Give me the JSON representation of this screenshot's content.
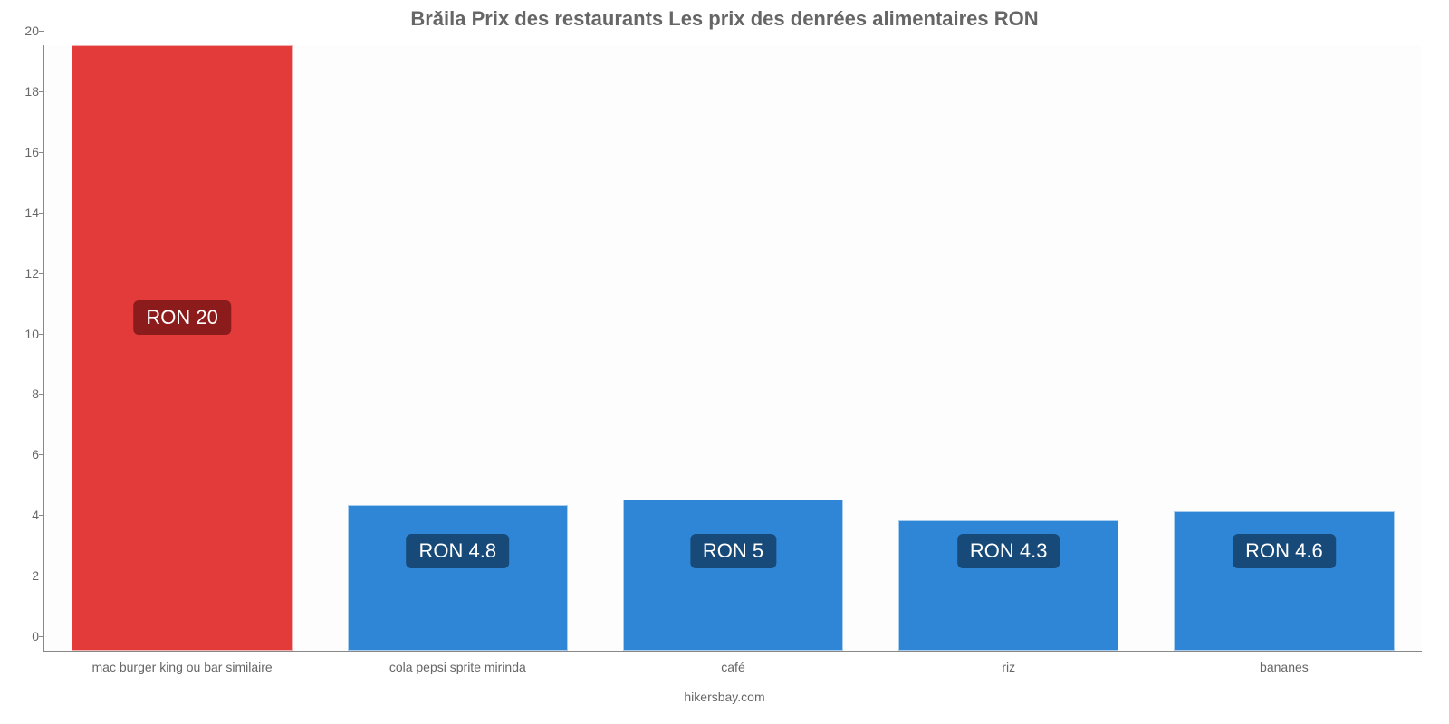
{
  "chart": {
    "type": "bar",
    "title": "Brăila Prix des restaurants Les prix des denrées alimentaires RON",
    "title_fontsize": 22,
    "title_color": "#666666",
    "background_color": "#ffffff",
    "plot_background_color": "#fdfdfe",
    "axis_color": "#888888",
    "tick_label_color": "#666666",
    "tick_label_fontsize": 14,
    "ylim_min": 0,
    "ylim_max": 20,
    "ytick_step": 2,
    "bar_width_pct": 80,
    "value_label_fontsize": 22,
    "value_label_color": "#ffffff",
    "value_label_radius": 6,
    "xlabel_fontsize": 14,
    "credit": "hikersbay.com",
    "credit_fontsize": 14,
    "categories": [
      "mac burger king ou bar similaire",
      "cola pepsi sprite mirinda",
      "café",
      "riz",
      "bananes"
    ],
    "values": [
      20,
      4.8,
      5,
      4.3,
      4.6
    ],
    "value_labels": [
      "RON 20",
      "RON 4.8",
      "RON 5",
      "RON 4.3",
      "RON 4.6"
    ],
    "bar_colors": [
      "#e33a3a",
      "#2f86d6",
      "#2f86d6",
      "#2f86d6",
      "#2f86d6"
    ],
    "label_bg_colors": [
      "#8c1b1b",
      "#174a78",
      "#174a78",
      "#174a78",
      "#174a78"
    ],
    "label_center_values": [
      11,
      3.3,
      3.3,
      3.3,
      3.3
    ]
  }
}
